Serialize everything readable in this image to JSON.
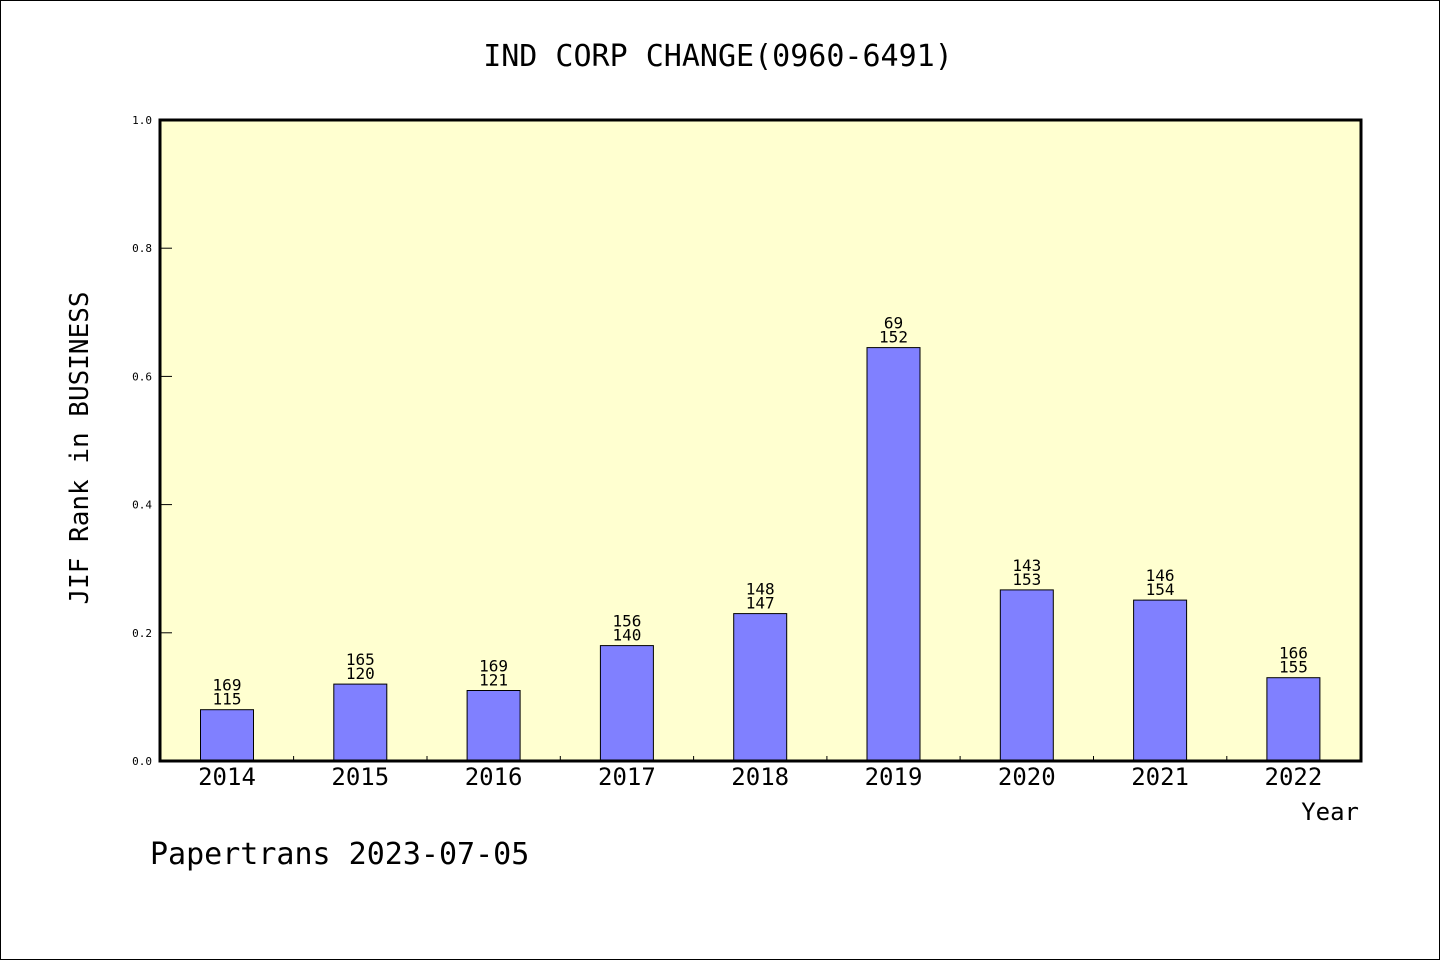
{
  "chart_data": {
    "type": "bar",
    "title": "IND CORP CHANGE(0960-6491)",
    "xlabel": "Year",
    "ylabel": "JIF Rank in BUSINESS",
    "categories": [
      "2014",
      "2015",
      "2016",
      "2017",
      "2018",
      "2019",
      "2020",
      "2021",
      "2022"
    ],
    "series": [
      {
        "values": [
          0.08,
          0.12,
          0.11,
          0.18,
          0.23,
          0.645,
          0.267,
          0.251,
          0.13
        ]
      }
    ],
    "labels_top": [
      "169",
      "165",
      "169",
      "156",
      "148",
      "69",
      "143",
      "146",
      "166"
    ],
    "labels_bottom": [
      "115",
      "120",
      "121",
      "140",
      "147",
      "152",
      "153",
      "154",
      "155"
    ],
    "ylim": [
      0,
      1.0
    ],
    "yticks": [
      "0.0",
      "0.2",
      "0.4",
      "0.6",
      "0.8",
      "1.0"
    ],
    "grid": false,
    "colors": {
      "plot_bg": "#FFFFD0",
      "bar": "#8080FF",
      "axis": "#000000"
    }
  },
  "footer": {
    "text": "Papertrans 2023-07-05"
  }
}
